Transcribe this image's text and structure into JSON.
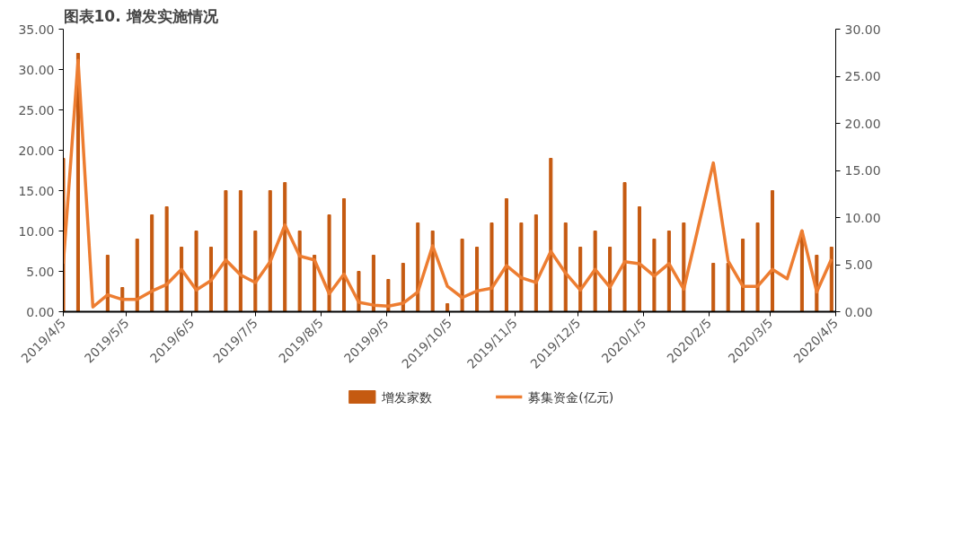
{
  "chart_data": {
    "type": "bar",
    "title": "图表10. 增发实施情况",
    "x": [
      "2019-04-05",
      "2019-04-12",
      "2019-04-19",
      "2019-04-26",
      "2019-05-03",
      "2019-05-10",
      "2019-05-17",
      "2019-05-24",
      "2019-05-31",
      "2019-06-07",
      "2019-06-14",
      "2019-06-21",
      "2019-06-28",
      "2019-07-05",
      "2019-07-12",
      "2019-07-19",
      "2019-07-26",
      "2019-08-02",
      "2019-08-09",
      "2019-08-16",
      "2019-08-23",
      "2019-08-30",
      "2019-09-06",
      "2019-09-13",
      "2019-09-20",
      "2019-09-27",
      "2019-10-04",
      "2019-10-11",
      "2019-10-18",
      "2019-10-25",
      "2019-11-01",
      "2019-11-08",
      "2019-11-15",
      "2019-11-22",
      "2019-11-29",
      "2019-12-06",
      "2019-12-13",
      "2019-12-20",
      "2019-12-27",
      "2020-01-03",
      "2020-01-10",
      "2020-01-17",
      "2020-01-24",
      "2020-01-31",
      "2020-02-07",
      "2020-02-14",
      "2020-02-21",
      "2020-02-28",
      "2020-03-06",
      "2020-03-13",
      "2020-03-20",
      "2020-03-27",
      "2020-04-03"
    ],
    "xlim": [
      "2019-04-05",
      "2020-04-05"
    ],
    "xticks": [
      {
        "value": "2019-04-05",
        "label": "2019/4/5"
      },
      {
        "value": "2019-05-05",
        "label": "2019/5/5"
      },
      {
        "value": "2019-06-05",
        "label": "2019/6/5"
      },
      {
        "value": "2019-07-05",
        "label": "2019/7/5"
      },
      {
        "value": "2019-08-05",
        "label": "2019/8/5"
      },
      {
        "value": "2019-09-05",
        "label": "2019/9/5"
      },
      {
        "value": "2019-10-05",
        "label": "2019/10/5"
      },
      {
        "value": "2019-11-05",
        "label": "2019/11/5"
      },
      {
        "value": "2019-12-05",
        "label": "2019/12/5"
      },
      {
        "value": "2020-01-05",
        "label": "2020/1/5"
      },
      {
        "value": "2020-02-05",
        "label": "2020/2/5"
      },
      {
        "value": "2020-03-05",
        "label": "2020/3/5"
      },
      {
        "value": "2020-04-05",
        "label": "2020/4/5"
      }
    ],
    "ylim": [
      0,
      35
    ],
    "yticks": [
      {
        "value": 0,
        "label": "0.00"
      },
      {
        "value": 5,
        "label": "5.00"
      },
      {
        "value": 10,
        "label": "10.00"
      },
      {
        "value": 15,
        "label": "15.00"
      },
      {
        "value": 20,
        "label": "20.00"
      },
      {
        "value": 25,
        "label": "25.00"
      },
      {
        "value": 30,
        "label": "30.00"
      },
      {
        "value": 35,
        "label": "35.00"
      }
    ],
    "y2lim": [
      0,
      30
    ],
    "y2ticks": [
      {
        "value": 0,
        "label": "0.00"
      },
      {
        "value": 5,
        "label": "5.00"
      },
      {
        "value": 10,
        "label": "10.00"
      },
      {
        "value": 15,
        "label": "15.00"
      },
      {
        "value": 20,
        "label": "20.00"
      },
      {
        "value": 25,
        "label": "25.00"
      },
      {
        "value": 30,
        "label": "30.00"
      }
    ],
    "legend": "bottom",
    "series": [
      {
        "name": "增发家数",
        "color": "#c55a11",
        "values": [
          19,
          32,
          0,
          7,
          3,
          9,
          12,
          13,
          8,
          10,
          8,
          15,
          15,
          10,
          15,
          16,
          10,
          7,
          12,
          14,
          5,
          7,
          4,
          6,
          11,
          10,
          1,
          9,
          8,
          11,
          14,
          11,
          12,
          19,
          11,
          8,
          10,
          8,
          16,
          13,
          9,
          10,
          11,
          0,
          6,
          6,
          9,
          11,
          15,
          0,
          10,
          7,
          8
        ]
      },
      {
        "name": "募集资金(亿元)",
        "type": "line",
        "axis": "y2",
        "color": "#ed7d31",
        "values": [
          5.1,
          26.7,
          0.5,
          1.8,
          1.3,
          1.3,
          2.2,
          2.9,
          4.5,
          2.3,
          3.3,
          5.5,
          3.9,
          3.1,
          5.3,
          9.2,
          5.9,
          5.5,
          1.9,
          4.0,
          1.0,
          0.7,
          0.6,
          0.9,
          2.1,
          7.0,
          2.7,
          1.5,
          2.2,
          2.5,
          4.9,
          3.6,
          3.1,
          6.4,
          4.1,
          2.3,
          4.5,
          2.6,
          5.3,
          5.1,
          3.8,
          5.1,
          2.4,
          9.1,
          15.8,
          5.4,
          2.7,
          2.7,
          4.5,
          3.5,
          8.6,
          2.1,
          5.6
        ]
      }
    ]
  }
}
